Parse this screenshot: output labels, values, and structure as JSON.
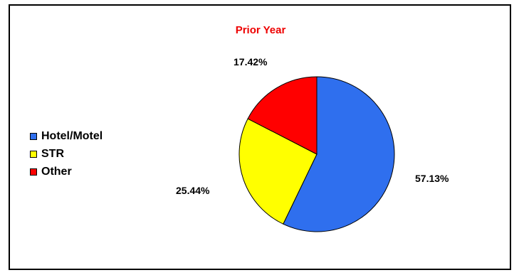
{
  "chart_data": {
    "type": "pie",
    "title": "Prior Year",
    "title_color": "#ee0000",
    "legend_position": "left",
    "slices": [
      {
        "label": "Hotel/Motel",
        "value": 57.13,
        "display": "57.13%",
        "color": "#2f6fee"
      },
      {
        "label": "STR",
        "value": 25.44,
        "display": "25.44%",
        "color": "#ffff00"
      },
      {
        "label": "Other",
        "value": 17.42,
        "display": "17.42%",
        "color": "#ff0000"
      }
    ]
  }
}
